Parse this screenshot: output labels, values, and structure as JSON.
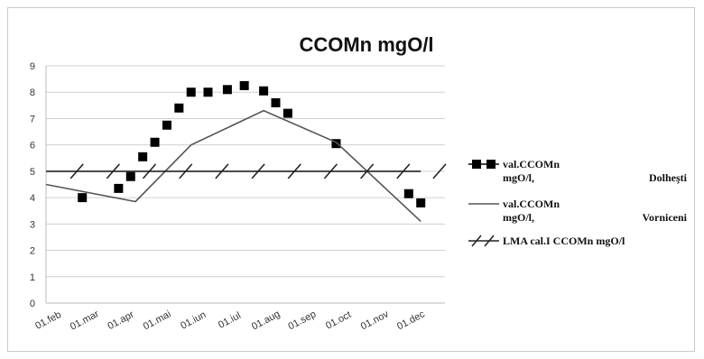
{
  "chart_data": {
    "type": "line",
    "title": "CCOMn mgO/l",
    "xlabel": "",
    "ylabel": "",
    "ylim": [
      0,
      9
    ],
    "yticks": [
      "0",
      "1",
      "2",
      "3",
      "4",
      "5",
      "6",
      "7",
      "8",
      "9"
    ],
    "x_tick_labels": [
      "01.feb",
      "01.mar",
      "01.apr",
      "01.mai",
      "01.iun",
      "01.iul",
      "01.aug",
      "01.sep",
      "01.oct",
      "01.nov",
      "01.dec"
    ],
    "grid": true,
    "legend_position": "right",
    "series": [
      {
        "name_lines": [
          "val.CCOMn",
          "mgO/l,",
          "Dolheşti"
        ],
        "style": "markers",
        "color": "#000000",
        "points": [
          {
            "x": "01.mar",
            "y": 4.0
          },
          {
            "x": "01.apr",
            "y": 4.35
          },
          {
            "x": "11.apr",
            "y": 4.8
          },
          {
            "x": "21.apr",
            "y": 5.55
          },
          {
            "x": "01.mai",
            "y": 6.1
          },
          {
            "x": "11.mai",
            "y": 6.75
          },
          {
            "x": "21.mai",
            "y": 7.4
          },
          {
            "x": "01.iun",
            "y": 8.0
          },
          {
            "x": "15.iun",
            "y": 8.0
          },
          {
            "x": "01.iul",
            "y": 8.1
          },
          {
            "x": "15.iul",
            "y": 8.25
          },
          {
            "x": "01.aug",
            "y": 8.05
          },
          {
            "x": "11.aug",
            "y": 7.6
          },
          {
            "x": "21.aug",
            "y": 7.2
          },
          {
            "x": "01.oct",
            "y": 6.05
          },
          {
            "x": "01.dec",
            "y": 4.15
          },
          {
            "x": "11.dec",
            "y": 3.8
          }
        ]
      },
      {
        "name_lines": [
          "val.CCOMn",
          "mgO/l,",
          "Vorniceni"
        ],
        "style": "line",
        "color": "#555555",
        "points": [
          {
            "x": "01.feb",
            "y": 4.5
          },
          {
            "x": "15.apr",
            "y": 3.85
          },
          {
            "x": "01.iun",
            "y": 6.0
          },
          {
            "x": "01.aug",
            "y": 7.3
          },
          {
            "x": "01.oct",
            "y": 6.1
          },
          {
            "x": "11.dec",
            "y": 3.1
          }
        ]
      },
      {
        "name_lines": [
          "LMA cal.I CCOMn mgO/l"
        ],
        "style": "hatched-line",
        "color": "#222222",
        "points": [
          {
            "x": "01.feb",
            "y": 5.0
          },
          {
            "x": "11.dec",
            "y": 5.0
          }
        ]
      }
    ]
  },
  "layout_hints": {
    "series_colors": {
      "gridline": "#d0d0d0",
      "axis": "#bbbbbb"
    }
  }
}
